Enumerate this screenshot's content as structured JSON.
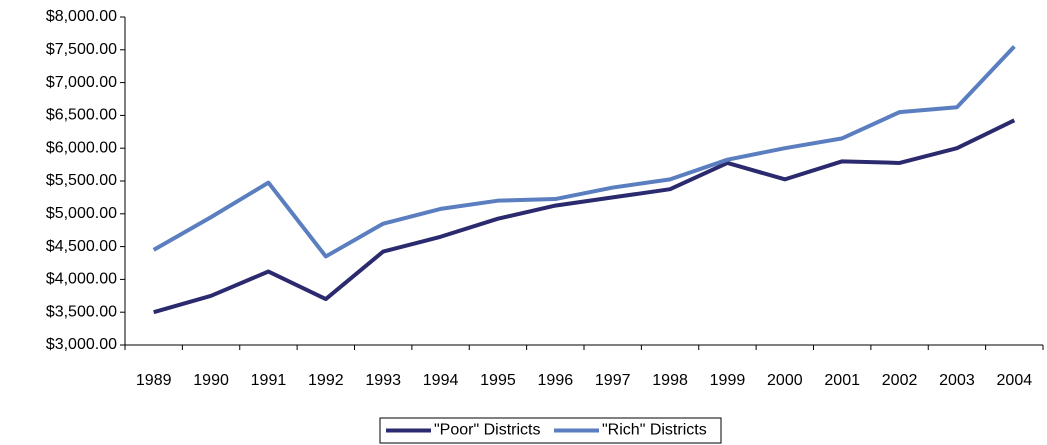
{
  "chart_data": {
    "type": "line",
    "categories": [
      "1989",
      "1990",
      "1991",
      "1992",
      "1993",
      "1994",
      "1995",
      "1996",
      "1997",
      "1998",
      "1999",
      "2000",
      "2001",
      "2002",
      "2003",
      "2004"
    ],
    "series": [
      {
        "name": "\"Poor\" Districts",
        "color": "#2b2a6e",
        "values": [
          3500,
          3750,
          4120,
          3700,
          4425,
          4650,
          4925,
          5125,
          5250,
          5375,
          5775,
          5525,
          5800,
          5775,
          6000,
          6425
        ]
      },
      {
        "name": "\"Rich\" Districts",
        "color": "#5a7ebf",
        "values": [
          4450,
          4950,
          5475,
          4350,
          4850,
          5075,
          5200,
          5225,
          5400,
          5525,
          5825,
          6000,
          6150,
          6550,
          6625,
          7550
        ]
      }
    ],
    "ylim": [
      3000,
      8000
    ],
    "yticks": [
      {
        "value": 3000,
        "label": "$3,000.00"
      },
      {
        "value": 3500,
        "label": "$3,500.00"
      },
      {
        "value": 4000,
        "label": "$4,000.00"
      },
      {
        "value": 4500,
        "label": "$4,500.00"
      },
      {
        "value": 5000,
        "label": "$5,000.00"
      },
      {
        "value": 5500,
        "label": "$5,500.00"
      },
      {
        "value": 6000,
        "label": "$6,000.00"
      },
      {
        "value": 6500,
        "label": "$6,500.00"
      },
      {
        "value": 7000,
        "label": "$7,000.00"
      },
      {
        "value": 7500,
        "label": "$7,500.00"
      },
      {
        "value": 8000,
        "label": "$8,000.00"
      }
    ],
    "grid": false,
    "legend": "bottom"
  }
}
